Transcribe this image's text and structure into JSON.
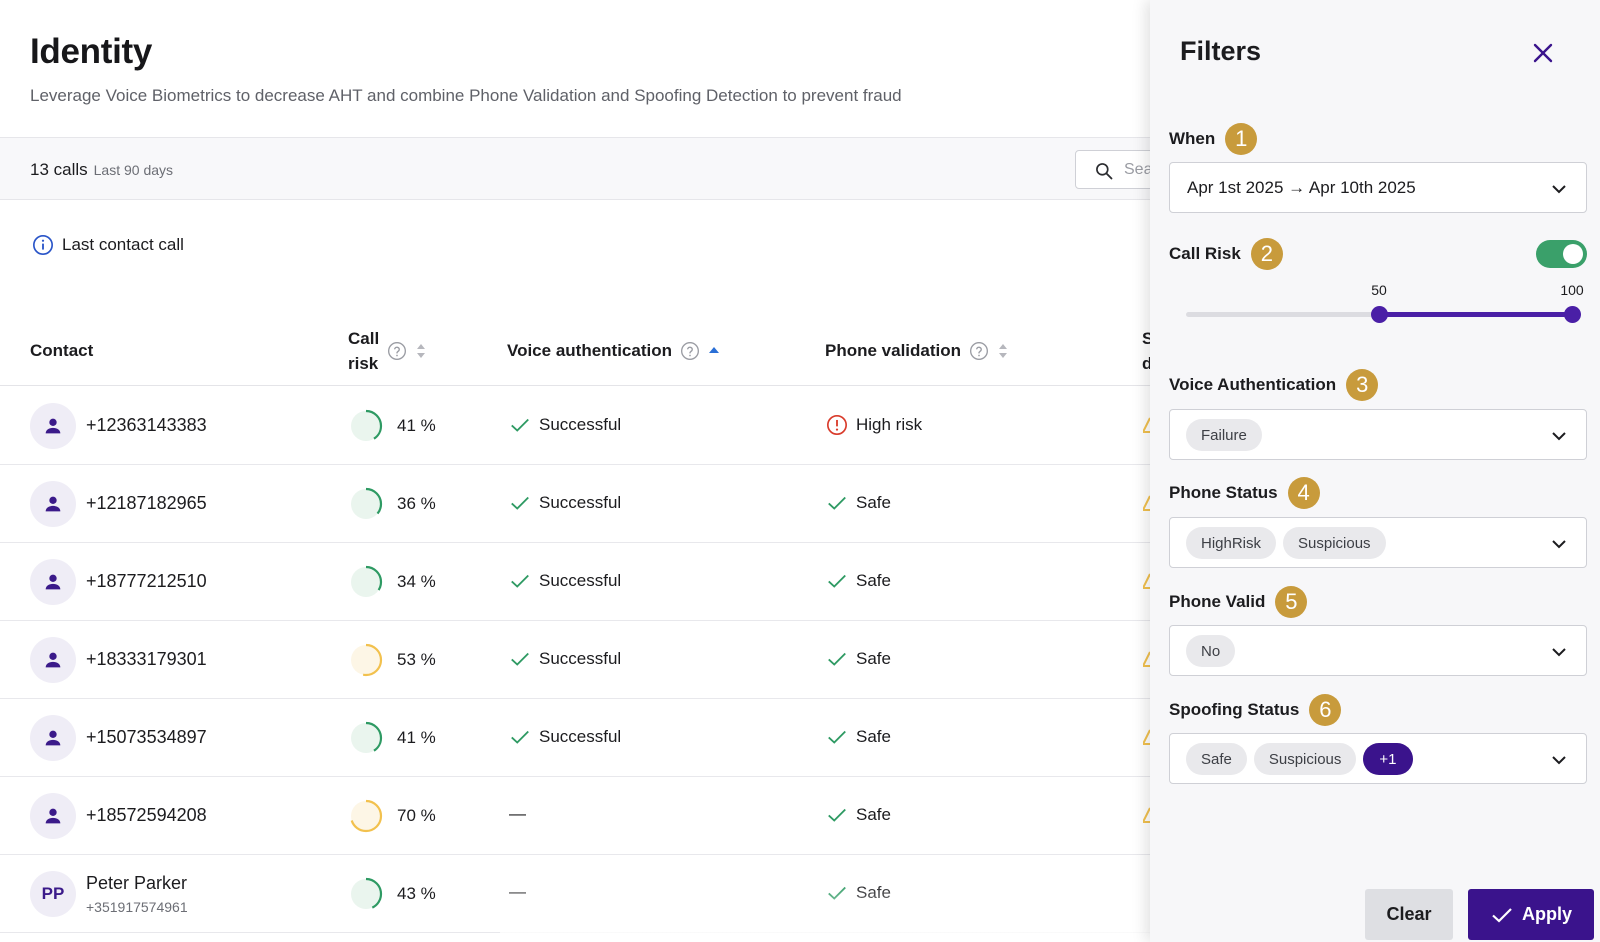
{
  "header": {
    "title": "Identity",
    "subtitle": "Leverage Voice Biometrics to decrease AHT and combine Phone Validation and Spoofing Detection to prevent fraud"
  },
  "toolbar": {
    "count": "13 calls",
    "range": "Last 90 days",
    "search_placeholder": "Sea"
  },
  "info": {
    "label": "Last contact call"
  },
  "table": {
    "columns": {
      "contact": "Contact",
      "call_risk_line1": "Call",
      "call_risk_line2": "risk",
      "voice": "Voice authentication",
      "phone": "Phone validation",
      "spoof_line1": "S",
      "spoof_line2": "d"
    },
    "rows": [
      {
        "contact": "+12363143383",
        "risk": "41 %",
        "risk_pct": 41,
        "voice": "Successful",
        "voice_ok": true,
        "phone": "High risk",
        "phone_ok": false
      },
      {
        "contact": "+12187182965",
        "risk": "36 %",
        "risk_pct": 36,
        "voice": "Successful",
        "voice_ok": true,
        "phone": "Safe",
        "phone_ok": true
      },
      {
        "contact": "+18777212510",
        "risk": "34 %",
        "risk_pct": 34,
        "voice": "Successful",
        "voice_ok": true,
        "phone": "Safe",
        "phone_ok": true
      },
      {
        "contact": "+18333179301",
        "risk": "53 %",
        "risk_pct": 53,
        "voice": "Successful",
        "voice_ok": true,
        "phone": "Safe",
        "phone_ok": true
      },
      {
        "contact": "+15073534897",
        "risk": "41 %",
        "risk_pct": 41,
        "voice": "Successful",
        "voice_ok": true,
        "phone": "Safe",
        "phone_ok": true
      },
      {
        "contact": "+18572594208",
        "risk": "70 %",
        "risk_pct": 70,
        "voice": "—",
        "voice_ok": null,
        "phone": "Safe",
        "phone_ok": true
      },
      {
        "contact": "Peter Parker",
        "sub": "+351917574961",
        "initials": "PP",
        "risk": "43 %",
        "risk_pct": 43,
        "voice": "—",
        "voice_ok": null,
        "phone": "Safe",
        "phone_ok": true
      }
    ]
  },
  "filters": {
    "title": "Filters",
    "when": {
      "label": "When",
      "badge": "1",
      "value": "Apr 1st 2025 → Apr 10th 2025"
    },
    "call_risk": {
      "label": "Call Risk",
      "badge": "2",
      "enabled": true,
      "min_label": "50",
      "max_label": "100",
      "min": 50,
      "max": 100
    },
    "voice_auth": {
      "label": "Voice Authentication",
      "badge": "3",
      "chips": [
        "Failure"
      ]
    },
    "phone_status": {
      "label": "Phone Status",
      "badge": "4",
      "chips": [
        "HighRisk",
        "Suspicious"
      ]
    },
    "phone_valid": {
      "label": "Phone Valid",
      "badge": "5",
      "chips": [
        "No"
      ]
    },
    "spoofing_status": {
      "label": "Spoofing Status",
      "badge": "6",
      "chips": [
        "Safe",
        "Suspicious"
      ],
      "more": "+1"
    },
    "clear_label": "Clear",
    "apply_label": "Apply"
  },
  "colors": {
    "accent": "#3a138c",
    "badge": "#c89b3c",
    "success": "#2e9a63",
    "danger": "#d93b2b",
    "warning": "#f2c14e",
    "toggle_on": "#3aa06a"
  },
  "icons": {
    "search": "search-icon",
    "info": "info-icon",
    "help": "help-circle-icon",
    "sort": "sort-icon",
    "check": "check-icon",
    "alert": "alert-circle-icon",
    "user": "user-icon",
    "chevron": "chevron-down-icon",
    "close": "close-icon"
  }
}
